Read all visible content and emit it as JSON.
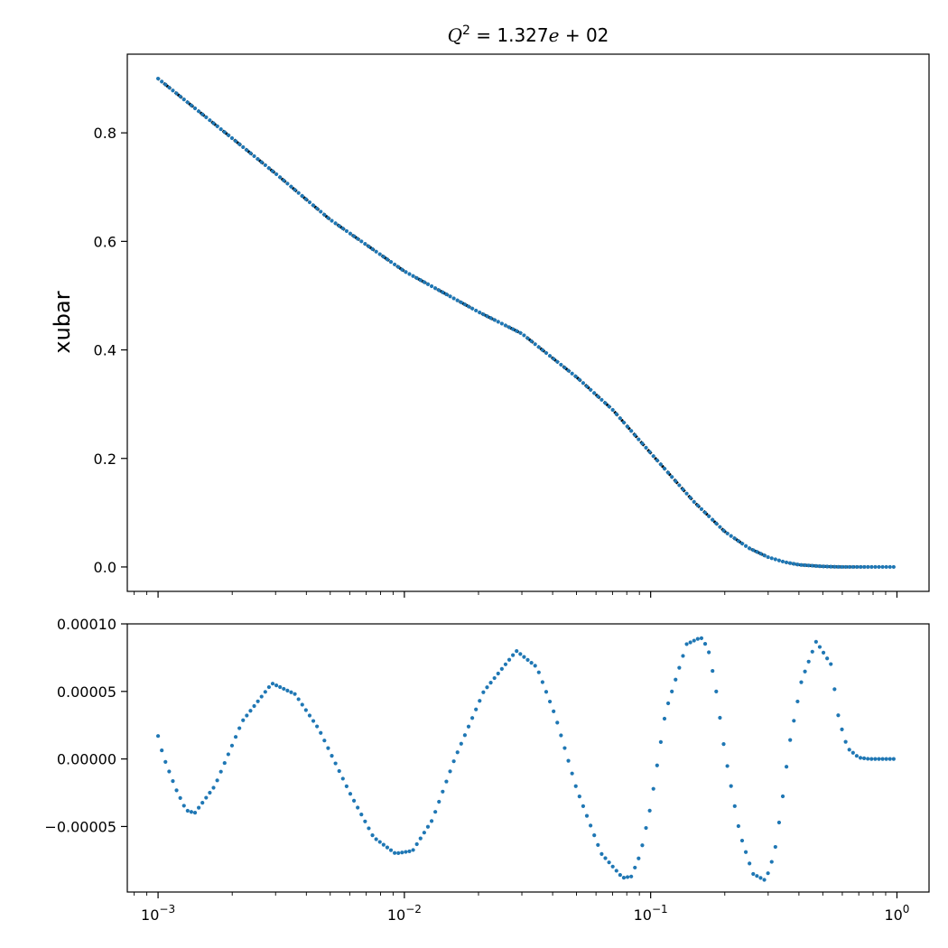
{
  "chart_data": [
    {
      "type": "scatter",
      "title": "Q² = 1.327e+02",
      "title_parts": {
        "lhs": "Q",
        "exp": "2",
        "eq": " = 1.327",
        "e": "e",
        "rest": " + 02"
      },
      "xlabel": "",
      "ylabel": "xubar",
      "xscale": "log",
      "xlim": [
        0.00075,
        1.35
      ],
      "ylim": [
        -0.045,
        0.945
      ],
      "xticks": [
        0.001,
        0.01,
        0.1,
        1
      ],
      "yticks": [
        0.0,
        0.2,
        0.4,
        0.6,
        0.8
      ],
      "ytick_labels": [
        "0.0",
        "0.2",
        "0.4",
        "0.6",
        "0.8"
      ],
      "grid": false,
      "n_points": 200,
      "x_range": [
        0.001,
        0.97
      ],
      "series": [
        {
          "kind": "line",
          "color": "#000000",
          "x": [
            0.001,
            0.002,
            0.003,
            0.005,
            0.01,
            0.02,
            0.03,
            0.05,
            0.07,
            0.1,
            0.15,
            0.2,
            0.25,
            0.3,
            0.35,
            0.4,
            0.5,
            0.6,
            0.7,
            0.8,
            0.97
          ],
          "y": [
            0.9,
            0.79,
            0.725,
            0.64,
            0.545,
            0.47,
            0.43,
            0.35,
            0.29,
            0.21,
            0.12,
            0.065,
            0.035,
            0.018,
            0.009,
            0.004,
            0.001,
            0.0,
            0.0,
            0.0,
            0.0
          ]
        },
        {
          "kind": "scatter",
          "color": "#1f77b4",
          "x": [
            0.001,
            0.002,
            0.003,
            0.005,
            0.01,
            0.02,
            0.03,
            0.05,
            0.07,
            0.1,
            0.15,
            0.2,
            0.25,
            0.3,
            0.35,
            0.4,
            0.5,
            0.6,
            0.7,
            0.8,
            0.97
          ],
          "y": [
            0.9,
            0.79,
            0.725,
            0.64,
            0.545,
            0.47,
            0.43,
            0.35,
            0.29,
            0.21,
            0.12,
            0.065,
            0.035,
            0.018,
            0.009,
            0.004,
            0.001,
            0.0,
            0.0,
            0.0,
            0.0
          ]
        }
      ]
    },
    {
      "type": "scatter",
      "title": "",
      "xlabel": "",
      "ylabel": "",
      "xscale": "log",
      "xlim": [
        0.00075,
        1.35
      ],
      "ylim": [
        -9.85e-05,
        0.0001
      ],
      "xticks": [
        0.001,
        0.01,
        0.1,
        1
      ],
      "xtick_labels": [
        {
          "base": "10",
          "exp": "−3"
        },
        {
          "base": "10",
          "exp": "−2"
        },
        {
          "base": "10",
          "exp": "−1"
        },
        {
          "base": "10",
          "exp": "0"
        }
      ],
      "yticks": [
        -5e-05,
        0.0,
        5e-05,
        0.0001
      ],
      "ytick_labels": [
        "−0.00005",
        "0.00000",
        "0.00005",
        "0.00010"
      ],
      "grid": false,
      "series": [
        {
          "kind": "scatter",
          "color": "#1f77b4",
          "n_points": 200,
          "x_range": [
            0.001,
            0.97
          ],
          "x": [
            0.001,
            0.00105,
            0.00118,
            0.0013,
            0.00141,
            0.0017,
            0.0022,
            0.0029,
            0.0036,
            0.0045,
            0.006,
            0.0075,
            0.0092,
            0.0108,
            0.013,
            0.016,
            0.021,
            0.0285,
            0.0345,
            0.041,
            0.05,
            0.063,
            0.077,
            0.0835,
            0.091,
            0.1,
            0.115,
            0.14,
            0.16,
            0.171,
            0.183,
            0.2,
            0.23,
            0.26,
            0.293,
            0.318,
            0.34,
            0.365,
            0.41,
            0.47,
            0.54,
            0.58,
            0.63,
            0.7,
            0.77,
            0.85,
            0.97
          ],
          "y": [
            1.7e-05,
            2e-06,
            -2.2e-05,
            -3.8e-05,
            -4e-05,
            -2e-05,
            2.8e-05,
            5.6e-05,
            4.8e-05,
            2.2e-05,
            -2.5e-05,
            -5.8e-05,
            -7e-05,
            -6.8e-05,
            -4.5e-05,
            0.0,
            5e-05,
            8e-05,
            6.8e-05,
            3.2e-05,
            -2.2e-05,
            -7e-05,
            -8.8e-05,
            -8.7e-05,
            -7e-05,
            -3.5e-05,
            3.5e-05,
            8.5e-05,
            9e-05,
            8.2e-05,
            5.5e-05,
            5e-06,
            -5.5e-05,
            -8.5e-05,
            -9e-05,
            -7e-05,
            -3.5e-05,
            1e-05,
            5.8e-05,
            8.7e-05,
            7e-05,
            3e-05,
            8e-06,
            1e-06,
            0.0,
            0.0,
            0.0
          ]
        }
      ]
    }
  ]
}
